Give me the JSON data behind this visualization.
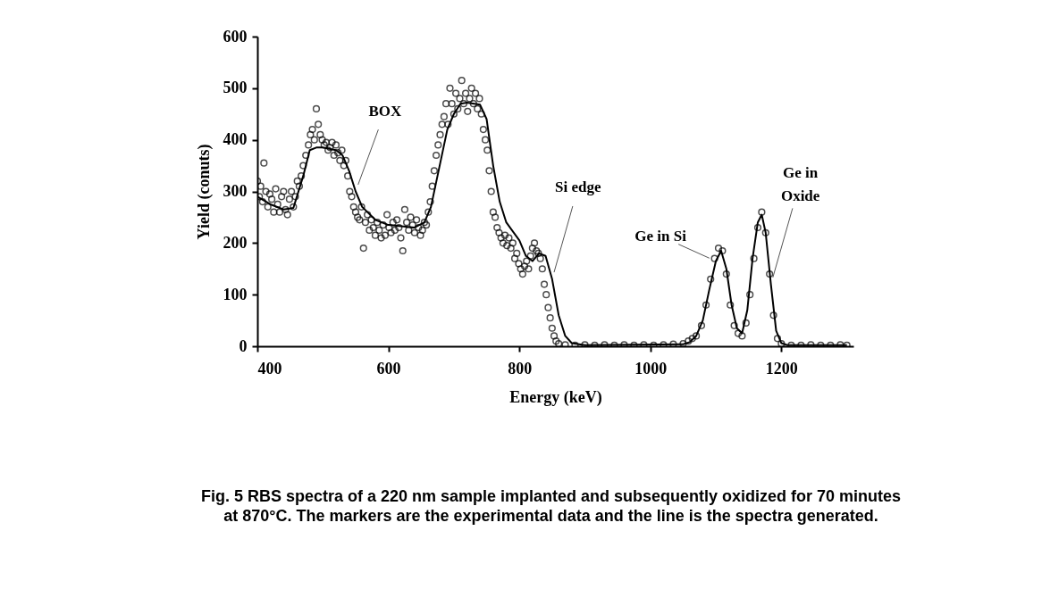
{
  "chart_data": {
    "type": "scatter",
    "xlabel": "Energy (keV)",
    "ylabel": "Yield (conuts)",
    "xlim": [
      400,
      1310
    ],
    "xticks": [
      400,
      600,
      800,
      1000,
      1200
    ],
    "ylim": [
      0,
      600
    ],
    "yticks": [
      0,
      100,
      200,
      300,
      400,
      500,
      600
    ],
    "grid": false,
    "series": [
      {
        "marker": "circle",
        "color": "#000000",
        "x": [
          400,
          403,
          405,
          408,
          410,
          413,
          416,
          419,
          422,
          425,
          428,
          431,
          434,
          437,
          440,
          443,
          446,
          449,
          452,
          455,
          458,
          461,
          464,
          467,
          470,
          474,
          478,
          481,
          484,
          487,
          490,
          493,
          496,
          499,
          502,
          505,
          508,
          511,
          514,
          517,
          520,
          523,
          526,
          529,
          532,
          535,
          538,
          541,
          544,
          547,
          550,
          553,
          556,
          559,
          562,
          565,
          568,
          571,
          574,
          577,
          580,
          583,
          586,
          589,
          592,
          595,
          598,
          601,
          604,
          607,
          610,
          613,
          616,
          619,
          622,
          625,
          628,
          631,
          634,
          637,
          640,
          643,
          646,
          649,
          652,
          655,
          658,
          661,
          664,
          667,
          670,
          673,
          676,
          679,
          682,
          685,
          688,
          691,
          694,
          697,
          700,
          703,
          706,
          709,
          712,
          715,
          718,
          721,
          724,
          727,
          730,
          733,
          736,
          739,
          742,
          745,
          748,
          751,
          754,
          757,
          760,
          763,
          766,
          769,
          772,
          775,
          778,
          781,
          784,
          787,
          790,
          793,
          796,
          799,
          802,
          805,
          808,
          811,
          814,
          817,
          820,
          823,
          826,
          829,
          832,
          835,
          838,
          841,
          844,
          847,
          850,
          853,
          856,
          860,
          870,
          885,
          900,
          915,
          930,
          945,
          960,
          975,
          990,
          1005,
          1020,
          1035,
          1050,
          1058,
          1064,
          1070,
          1078,
          1085,
          1092,
          1098,
          1104,
          1110,
          1116,
          1122,
          1128,
          1134,
          1140,
          1146,
          1152,
          1158,
          1164,
          1170,
          1176,
          1182,
          1188,
          1194,
          1200,
          1215,
          1230,
          1245,
          1260,
          1275,
          1290,
          1300
        ],
        "values": [
          320,
          290,
          310,
          280,
          355,
          300,
          270,
          295,
          285,
          260,
          305,
          275,
          260,
          290,
          300,
          265,
          255,
          285,
          300,
          270,
          290,
          320,
          310,
          330,
          350,
          370,
          390,
          410,
          420,
          400,
          460,
          430,
          410,
          400,
          390,
          395,
          380,
          385,
          395,
          370,
          390,
          375,
          360,
          380,
          350,
          360,
          330,
          300,
          290,
          270,
          260,
          250,
          245,
          270,
          190,
          240,
          255,
          225,
          245,
          230,
          215,
          240,
          225,
          210,
          235,
          215,
          255,
          230,
          220,
          240,
          225,
          245,
          230,
          210,
          185,
          265,
          240,
          225,
          250,
          235,
          220,
          245,
          230,
          215,
          225,
          240,
          235,
          260,
          280,
          310,
          340,
          370,
          390,
          410,
          430,
          445,
          470,
          430,
          500,
          470,
          450,
          490,
          460,
          480,
          515,
          470,
          490,
          455,
          480,
          500,
          470,
          490,
          460,
          480,
          450,
          420,
          400,
          380,
          340,
          300,
          260,
          250,
          230,
          220,
          210,
          200,
          215,
          195,
          210,
          190,
          200,
          170,
          180,
          160,
          150,
          140,
          155,
          165,
          150,
          175,
          190,
          200,
          185,
          180,
          170,
          150,
          120,
          100,
          75,
          55,
          35,
          20,
          10,
          5,
          3,
          2,
          3,
          2,
          3,
          2,
          3,
          2,
          3,
          2,
          3,
          4,
          5,
          10,
          15,
          20,
          40,
          80,
          130,
          170,
          190,
          185,
          140,
          80,
          40,
          25,
          20,
          45,
          100,
          170,
          230,
          260,
          220,
          140,
          60,
          15,
          5,
          2,
          2,
          3,
          2,
          2,
          3,
          2
        ]
      },
      {
        "type": "line",
        "marker": "none",
        "line_style": "solid",
        "color": "#000000",
        "x": [
          400,
          420,
          440,
          455,
          470,
          480,
          490,
          500,
          520,
          530,
          540,
          550,
          560,
          580,
          600,
          640,
          655,
          665,
          675,
          690,
          700,
          710,
          720,
          740,
          750,
          760,
          770,
          780,
          800,
          810,
          820,
          830,
          840,
          850,
          860,
          870,
          880,
          900,
          1050,
          1060,
          1070,
          1080,
          1090,
          1100,
          1108,
          1116,
          1124,
          1132,
          1140,
          1148,
          1156,
          1164,
          1170,
          1176,
          1184,
          1192,
          1200,
          1210,
          1300
        ],
        "values": [
          290,
          275,
          265,
          268,
          330,
          380,
          385,
          385,
          380,
          370,
          340,
          300,
          270,
          245,
          235,
          230,
          240,
          270,
          330,
          420,
          450,
          470,
          472,
          468,
          440,
          350,
          280,
          240,
          205,
          175,
          165,
          180,
          175,
          130,
          60,
          20,
          6,
          2,
          4,
          8,
          20,
          50,
          110,
          165,
          185,
          150,
          80,
          35,
          25,
          70,
          170,
          240,
          255,
          220,
          120,
          30,
          6,
          2,
          2
        ]
      }
    ],
    "annotations": [
      {
        "text": "BOX",
        "x": 550,
        "y": 300
      },
      {
        "text": "Si edge",
        "x": 850,
        "y": 130
      },
      {
        "text": "Ge in Si",
        "x": 1100,
        "y": 165
      },
      {
        "text": "Ge in\nOxide",
        "x": 1184,
        "y": 120
      },
      "Fig. 5 RBS spectra of a 220 nm sample implanted and subsequently oxidized for 70 minutes\nat 870°C. The markers are the experimental data and the line is the spectra generated."
    ]
  }
}
